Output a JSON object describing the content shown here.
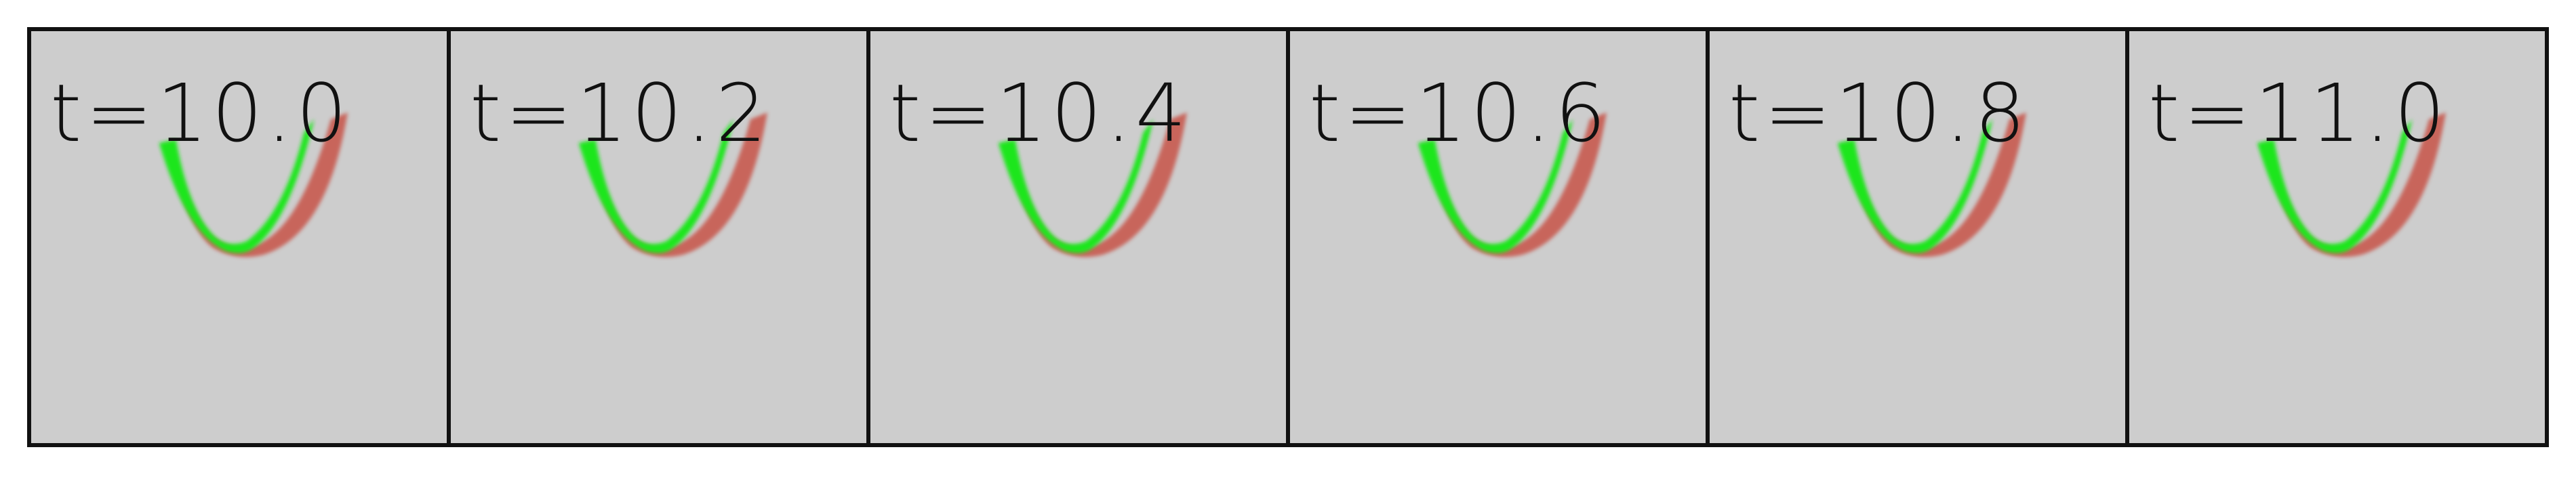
{
  "frames": [
    {
      "label": "t=10.0"
    },
    {
      "label": "t=10.2"
    },
    {
      "label": "t=10.4"
    },
    {
      "label": "t=10.6"
    },
    {
      "label": "t=10.8"
    },
    {
      "label": "t=11.0"
    }
  ],
  "colors": {
    "background": "#cdcdcd",
    "border": "#111111",
    "green_band": "#1ee61e",
    "red_band": "#c85a50"
  }
}
